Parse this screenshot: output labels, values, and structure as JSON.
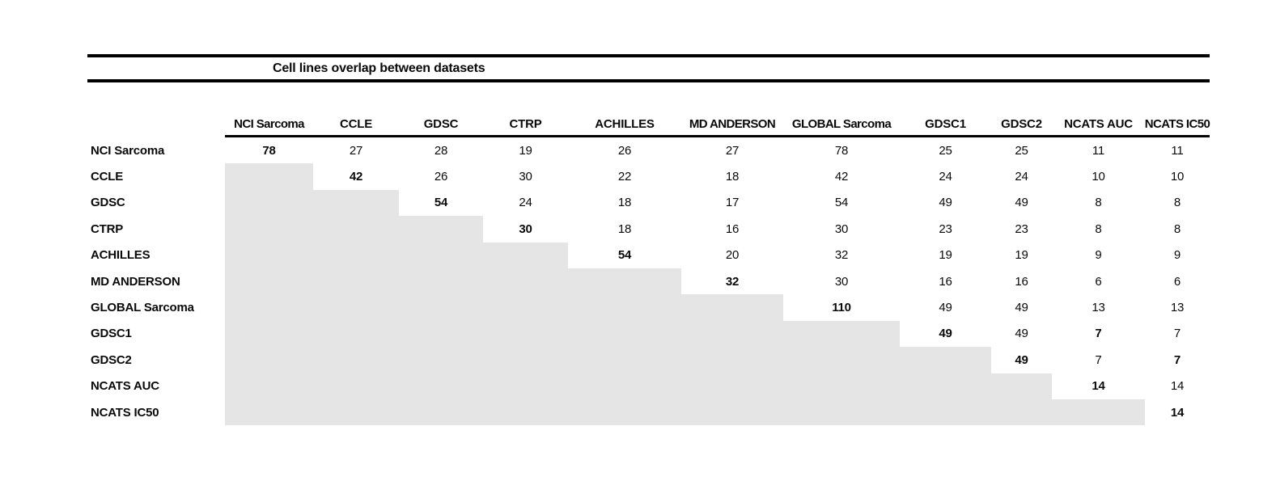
{
  "table": {
    "title": "Cell lines overlap between datasets"
  },
  "matrix": {
    "columns": [
      "NCI Sarcoma",
      "CCLE",
      "GDSC",
      "CTRP",
      "ACHILLES",
      "MD ANDERSON",
      "GLOBAL Sarcoma",
      "GDSC1",
      "GDSC2",
      "NCATS AUC",
      "NCATS IC50"
    ],
    "rows": [
      {
        "label": "NCI Sarcoma",
        "cells": [
          {
            "v": "78",
            "b": true
          },
          {
            "v": "27"
          },
          {
            "v": "28"
          },
          {
            "v": "19"
          },
          {
            "v": "26"
          },
          {
            "v": "27"
          },
          {
            "v": "78"
          },
          {
            "v": "25"
          },
          {
            "v": "25"
          },
          {
            "v": "11"
          },
          {
            "v": "11"
          }
        ]
      },
      {
        "label": "CCLE",
        "cells": [
          null,
          {
            "v": "42",
            "b": true
          },
          {
            "v": "26"
          },
          {
            "v": "30"
          },
          {
            "v": "22"
          },
          {
            "v": "18"
          },
          {
            "v": "42"
          },
          {
            "v": "24"
          },
          {
            "v": "24"
          },
          {
            "v": "10"
          },
          {
            "v": "10"
          }
        ]
      },
      {
        "label": "GDSC",
        "cells": [
          null,
          null,
          {
            "v": "54",
            "b": true
          },
          {
            "v": "24"
          },
          {
            "v": "18"
          },
          {
            "v": "17"
          },
          {
            "v": "54"
          },
          {
            "v": "49"
          },
          {
            "v": "49"
          },
          {
            "v": "8"
          },
          {
            "v": "8"
          }
        ]
      },
      {
        "label": "CTRP",
        "cells": [
          null,
          null,
          null,
          {
            "v": "30",
            "b": true
          },
          {
            "v": "18"
          },
          {
            "v": "16"
          },
          {
            "v": "30"
          },
          {
            "v": "23"
          },
          {
            "v": "23"
          },
          {
            "v": "8"
          },
          {
            "v": "8"
          }
        ]
      },
      {
        "label": "ACHILLES",
        "cells": [
          null,
          null,
          null,
          null,
          {
            "v": "54",
            "b": true
          },
          {
            "v": "20"
          },
          {
            "v": "32"
          },
          {
            "v": "19"
          },
          {
            "v": "19"
          },
          {
            "v": "9"
          },
          {
            "v": "9"
          }
        ]
      },
      {
        "label": "MD ANDERSON",
        "cells": [
          null,
          null,
          null,
          null,
          null,
          {
            "v": "32",
            "b": true
          },
          {
            "v": "30"
          },
          {
            "v": "16"
          },
          {
            "v": "16"
          },
          {
            "v": "6"
          },
          {
            "v": "6"
          }
        ]
      },
      {
        "label": "GLOBAL Sarcoma",
        "cells": [
          null,
          null,
          null,
          null,
          null,
          null,
          {
            "v": "110",
            "b": true
          },
          {
            "v": "49"
          },
          {
            "v": "49"
          },
          {
            "v": "13"
          },
          {
            "v": "13"
          }
        ]
      },
      {
        "label": "GDSC1",
        "cells": [
          null,
          null,
          null,
          null,
          null,
          null,
          null,
          {
            "v": "49",
            "b": true
          },
          {
            "v": "49"
          },
          {
            "v": "7",
            "b": true
          },
          {
            "v": "7"
          }
        ]
      },
      {
        "label": "GDSC2",
        "cells": [
          null,
          null,
          null,
          null,
          null,
          null,
          null,
          null,
          {
            "v": "49",
            "b": true
          },
          {
            "v": "7"
          },
          {
            "v": "7",
            "b": true
          }
        ]
      },
      {
        "label": "NCATS AUC",
        "cells": [
          null,
          null,
          null,
          null,
          null,
          null,
          null,
          null,
          null,
          {
            "v": "14",
            "b": true
          },
          {
            "v": "14"
          }
        ]
      },
      {
        "label": "NCATS IC50",
        "cells": [
          null,
          null,
          null,
          null,
          null,
          null,
          null,
          null,
          null,
          null,
          {
            "v": "14",
            "b": true
          }
        ]
      }
    ]
  }
}
